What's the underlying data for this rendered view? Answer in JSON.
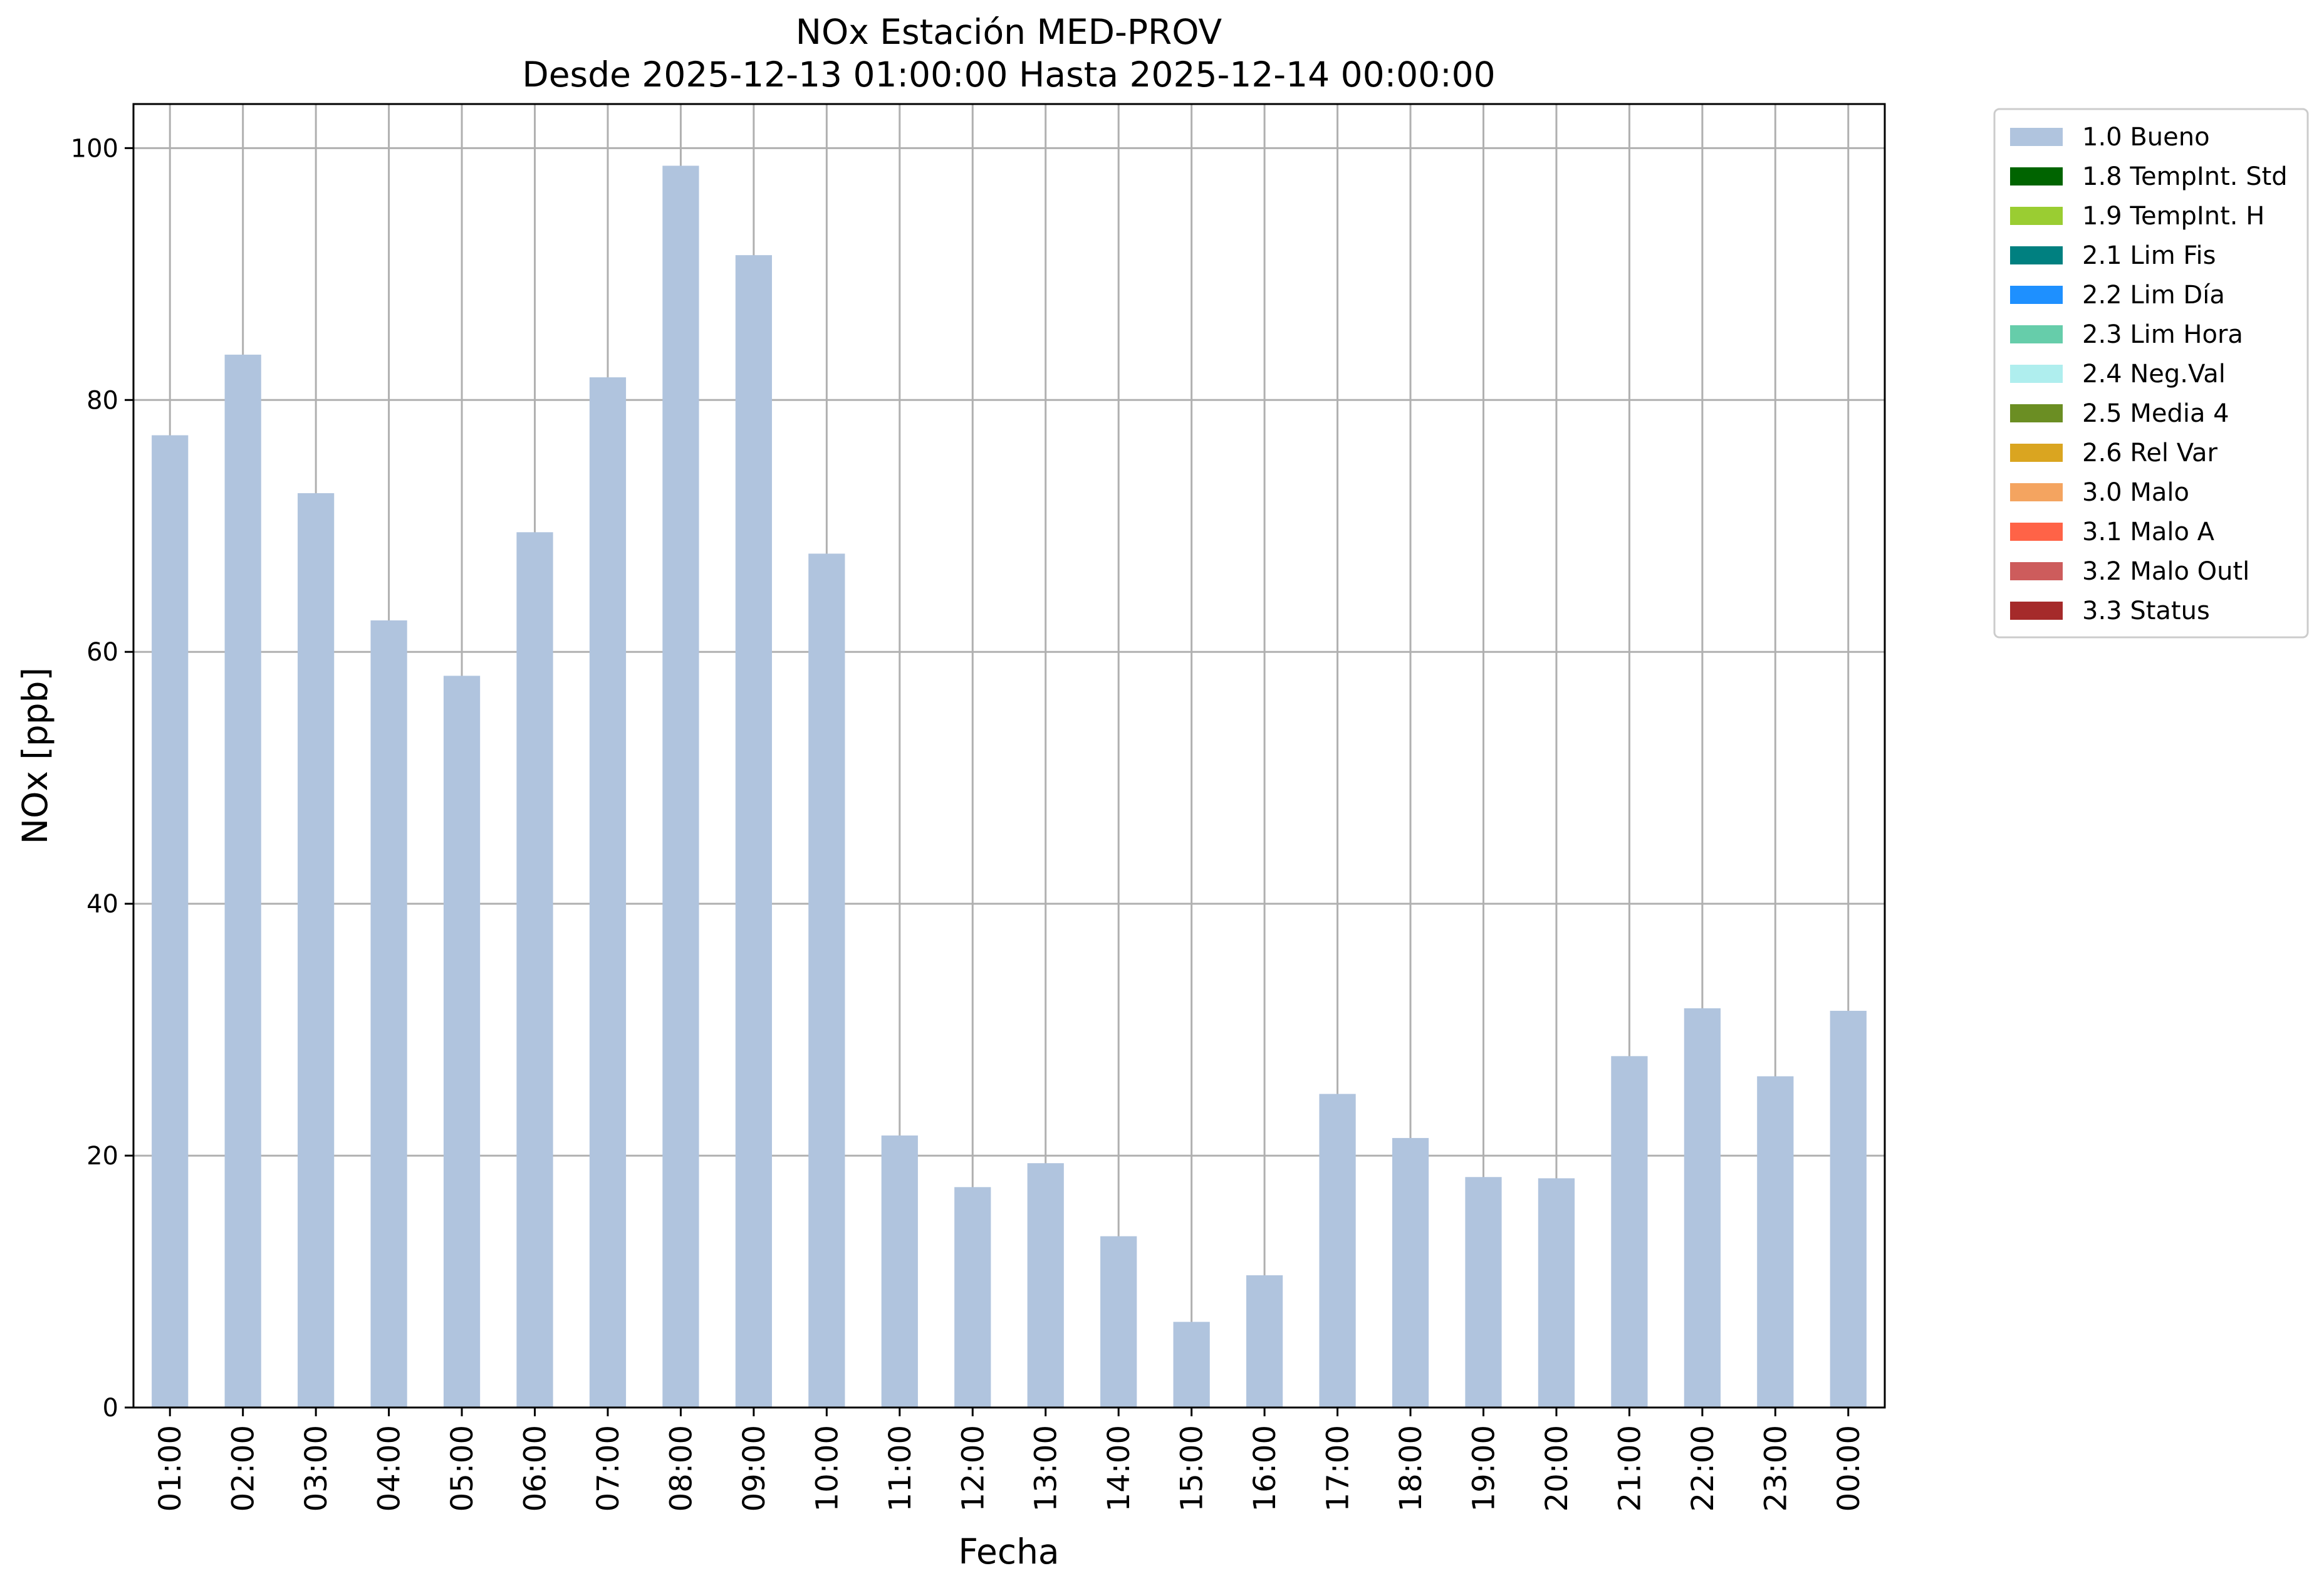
{
  "chart_data": {
    "type": "bar",
    "title": "NOx Estación MED-PROV",
    "subtitle": "Desde 2025-12-13 01:00:00 Hasta 2025-12-14 00:00:00",
    "xlabel": "Fecha",
    "ylabel": "NOx [ppb]",
    "ylim": [
      0,
      103.5
    ],
    "yticks": [
      0,
      20,
      40,
      60,
      80,
      100
    ],
    "grid": true,
    "legend_position": "outside-top-right",
    "categories": [
      "01:00",
      "02:00",
      "03:00",
      "04:00",
      "05:00",
      "06:00",
      "07:00",
      "08:00",
      "09:00",
      "10:00",
      "11:00",
      "12:00",
      "13:00",
      "14:00",
      "15:00",
      "16:00",
      "17:00",
      "18:00",
      "19:00",
      "20:00",
      "21:00",
      "22:00",
      "23:00",
      "00:00"
    ],
    "series": [
      {
        "name": "1.0 Bueno",
        "color": "#b0c4de",
        "values": [
          77.2,
          83.6,
          72.6,
          62.5,
          58.1,
          69.5,
          81.8,
          98.6,
          91.5,
          67.8,
          21.6,
          17.5,
          19.4,
          13.6,
          6.8,
          10.5,
          24.9,
          21.4,
          18.3,
          18.2,
          27.9,
          31.7,
          26.3,
          31.5
        ]
      }
    ],
    "legend": [
      {
        "label": "1.0 Bueno",
        "color": "#b0c4de"
      },
      {
        "label": "1.8 TempInt. Std",
        "color": "#006400"
      },
      {
        "label": "1.9 TempInt. H",
        "color": "#9acd32"
      },
      {
        "label": "2.1 Lim Fis",
        "color": "#008080"
      },
      {
        "label": "2.2 Lim Día",
        "color": "#1e90ff"
      },
      {
        "label": "2.3 Lim Hora",
        "color": "#66cdaa"
      },
      {
        "label": "2.4 Neg.Val",
        "color": "#afeeee"
      },
      {
        "label": "2.5 Media 4",
        "color": "#6b8e23"
      },
      {
        "label": "2.6 Rel Var",
        "color": "#daa520"
      },
      {
        "label": "3.0 Malo",
        "color": "#f4a460"
      },
      {
        "label": "3.1 Malo A",
        "color": "#ff6347"
      },
      {
        "label": "3.2 Malo Outl",
        "color": "#cd5c5c"
      },
      {
        "label": "3.3 Status",
        "color": "#a52a2a"
      }
    ]
  }
}
